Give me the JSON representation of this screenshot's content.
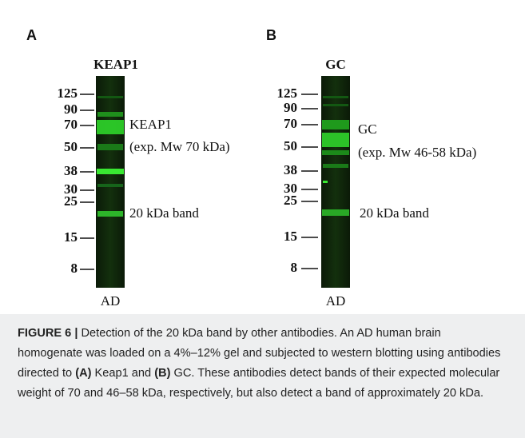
{
  "panels": [
    {
      "letter": "A",
      "title": "KEAP1",
      "markers": [
        125,
        90,
        70,
        50,
        38,
        30,
        25,
        15,
        8
      ],
      "annotations": [
        "KEAP1",
        "(exp. Mw 70 kDa)",
        "20 kDa band"
      ],
      "lane_label": "AD"
    },
    {
      "letter": "B",
      "title": "GC",
      "markers": [
        125,
        90,
        70,
        50,
        38,
        30,
        25,
        15,
        8
      ],
      "annotations": [
        "GC",
        "(exp. Mw 46-58 kDa)",
        "20 kDa band"
      ],
      "lane_label": "AD"
    }
  ],
  "caption": {
    "label": "FIGURE 6 |",
    "parts": [
      {
        "text": " Detection of the 20 kDa band by other antibodies. An AD human brain homogenate was loaded on a 4%–12% gel and subjected to western blotting using antibodies directed to ",
        "bold": false
      },
      {
        "text": "(A)",
        "bold": true
      },
      {
        "text": " Keap1 and ",
        "bold": false
      },
      {
        "text": "(B)",
        "bold": true
      },
      {
        "text": " GC. These antibodies detect bands of their expected molecular weight of 70 and 46–58 kDa, respectively, but also detect a band of approximately 20 kDa.",
        "bold": false
      }
    ]
  }
}
